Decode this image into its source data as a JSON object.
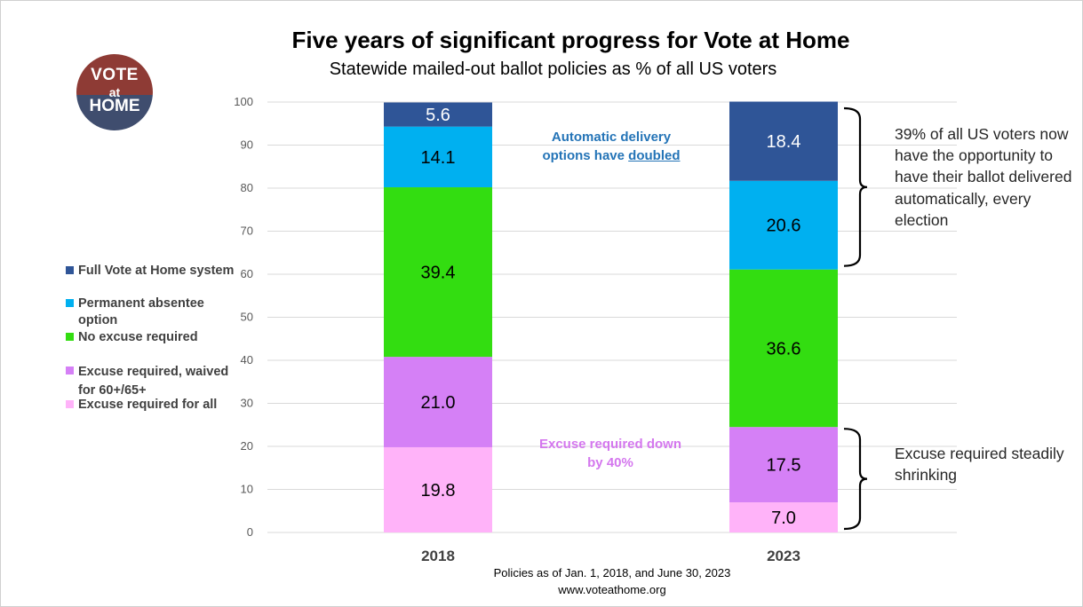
{
  "title": "Five years of significant progress for Vote at Home",
  "subtitle": "Statewide mailed-out ballot policies as % of all US voters",
  "logo": {
    "line1": "VOTE",
    "line2": "at",
    "line3": "HOME"
  },
  "legend": [
    {
      "label": "Full Vote at Home system",
      "color": "#2f5597"
    },
    {
      "label": "Permanent absentee option",
      "color": "#00b0f0"
    },
    {
      "label": "No excuse required",
      "color": "#33dd11"
    },
    {
      "label": "Excuse required, waived for 60+/65+",
      "color": "#d580f6"
    },
    {
      "label": "Excuse required for all",
      "color": "#ffb3f9"
    }
  ],
  "annotations": {
    "auto_prefix": "Automatic delivery options have ",
    "auto_emph": "doubled",
    "excuse_down": "Excuse required down by 40%",
    "auto_39": "39% of all US voters now have the opportunity to have their ballot delivered automatically, every election",
    "excuse_shrinking": "Excuse required steadily shrinking"
  },
  "footer": {
    "line1": "Policies as of Jan. 1, 2018, and June 30, 2023",
    "line2": "www.voteathome.org"
  },
  "chart_data": {
    "type": "bar",
    "stacked": true,
    "categories": [
      "2018",
      "2023"
    ],
    "series": [
      {
        "name": "Excuse required for all",
        "color": "#ffb3f9",
        "values": [
          19.8,
          7.0
        ]
      },
      {
        "name": "Excuse required, waived for 60+/65+",
        "color": "#d580f6",
        "values": [
          21.0,
          17.5
        ]
      },
      {
        "name": "No excuse required",
        "color": "#33dd11",
        "values": [
          39.4,
          36.6
        ]
      },
      {
        "name": "Permanent absentee option",
        "color": "#00b0f0",
        "values": [
          14.1,
          20.6
        ]
      },
      {
        "name": "Full Vote at Home system",
        "color": "#2f5597",
        "values": [
          5.6,
          18.4
        ]
      }
    ],
    "data_labels": [
      [
        "19.8",
        "21.0",
        "39.4",
        "14.1",
        "5.6"
      ],
      [
        "7.0",
        "17.5",
        "36.6",
        "20.6",
        "18.4"
      ]
    ],
    "yticks": [
      "0",
      "10",
      "20",
      "30",
      "40",
      "50",
      "60",
      "70",
      "80",
      "90",
      "100"
    ],
    "ylim": [
      0,
      100
    ],
    "grid": true,
    "legend_position": "left"
  }
}
